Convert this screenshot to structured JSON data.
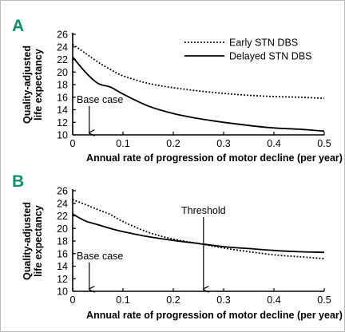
{
  "chart_data": [
    {
      "type": "line",
      "panel_label": "A",
      "xlabel": "Annual rate of progression of motor decline (per year)",
      "ylabel": [
        "Quality-adjusted",
        "life expectancy"
      ],
      "xlim": [
        0,
        0.5
      ],
      "ylim": [
        10,
        26
      ],
      "xticks": [
        "0",
        "0.1",
        "0.2",
        "0.3",
        "0.4",
        "0.5"
      ],
      "yticks": [
        "10",
        "12",
        "14",
        "16",
        "18",
        "20",
        "22",
        "24",
        "26"
      ],
      "legend": "top-right",
      "grid": false,
      "series": [
        {
          "name": "Early STN DBS",
          "style": "dotted",
          "x": [
            0,
            0.025,
            0.05,
            0.075,
            0.1,
            0.15,
            0.2,
            0.25,
            0.3,
            0.35,
            0.4,
            0.45,
            0.5
          ],
          "y": [
            24.4,
            23.0,
            21.6,
            20.4,
            19.4,
            18.2,
            17.5,
            17.0,
            16.6,
            16.3,
            16.1,
            16.0,
            15.8
          ]
        },
        {
          "name": "Delayed STN DBS",
          "style": "solid",
          "x": [
            0,
            0.025,
            0.05,
            0.075,
            0.1,
            0.15,
            0.2,
            0.25,
            0.3,
            0.35,
            0.4,
            0.45,
            0.5
          ],
          "y": [
            22.4,
            20.0,
            18.2,
            17.6,
            16.5,
            14.6,
            13.4,
            12.6,
            12.0,
            11.5,
            11.1,
            10.9,
            10.6
          ]
        }
      ],
      "annotations": [
        {
          "text": "Base case",
          "x": 0.033,
          "arrow_from_y": 14.6,
          "arrow_to_y": 10.2
        }
      ]
    },
    {
      "type": "line",
      "panel_label": "B",
      "xlabel": "Annual rate of progression of motor decline (per year)",
      "ylabel": [
        "Quality-adjusted",
        "life expectancy"
      ],
      "xlim": [
        0,
        0.5
      ],
      "ylim": [
        10,
        26
      ],
      "xticks": [
        "0",
        "0.1",
        "0.2",
        "0.3",
        "0.4",
        "0.5"
      ],
      "yticks": [
        "10",
        "12",
        "14",
        "16",
        "18",
        "20",
        "22",
        "24",
        "26"
      ],
      "legend": "none",
      "grid": false,
      "series": [
        {
          "name": "Early STN DBS",
          "style": "dotted",
          "x": [
            0,
            0.025,
            0.05,
            0.075,
            0.1,
            0.15,
            0.2,
            0.25,
            0.3,
            0.35,
            0.4,
            0.45,
            0.5
          ],
          "y": [
            24.6,
            23.8,
            23.0,
            22.2,
            21.1,
            19.4,
            18.3,
            17.6,
            16.9,
            16.3,
            15.8,
            15.5,
            15.2
          ]
        },
        {
          "name": "Delayed STN DBS",
          "style": "solid",
          "x": [
            0,
            0.025,
            0.05,
            0.075,
            0.1,
            0.15,
            0.2,
            0.25,
            0.3,
            0.35,
            0.4,
            0.45,
            0.5
          ],
          "y": [
            22.3,
            21.2,
            20.6,
            20.0,
            19.5,
            18.7,
            18.1,
            17.6,
            17.1,
            16.8,
            16.5,
            16.3,
            16.2
          ]
        }
      ],
      "annotations": [
        {
          "text": "Base case",
          "x": 0.033,
          "arrow_from_y": 14.6,
          "arrow_to_y": 10.2
        },
        {
          "text": "Threshold",
          "x": 0.26,
          "arrow_from_y": 21.8,
          "arrow_to_y": 10.2
        }
      ]
    }
  ]
}
